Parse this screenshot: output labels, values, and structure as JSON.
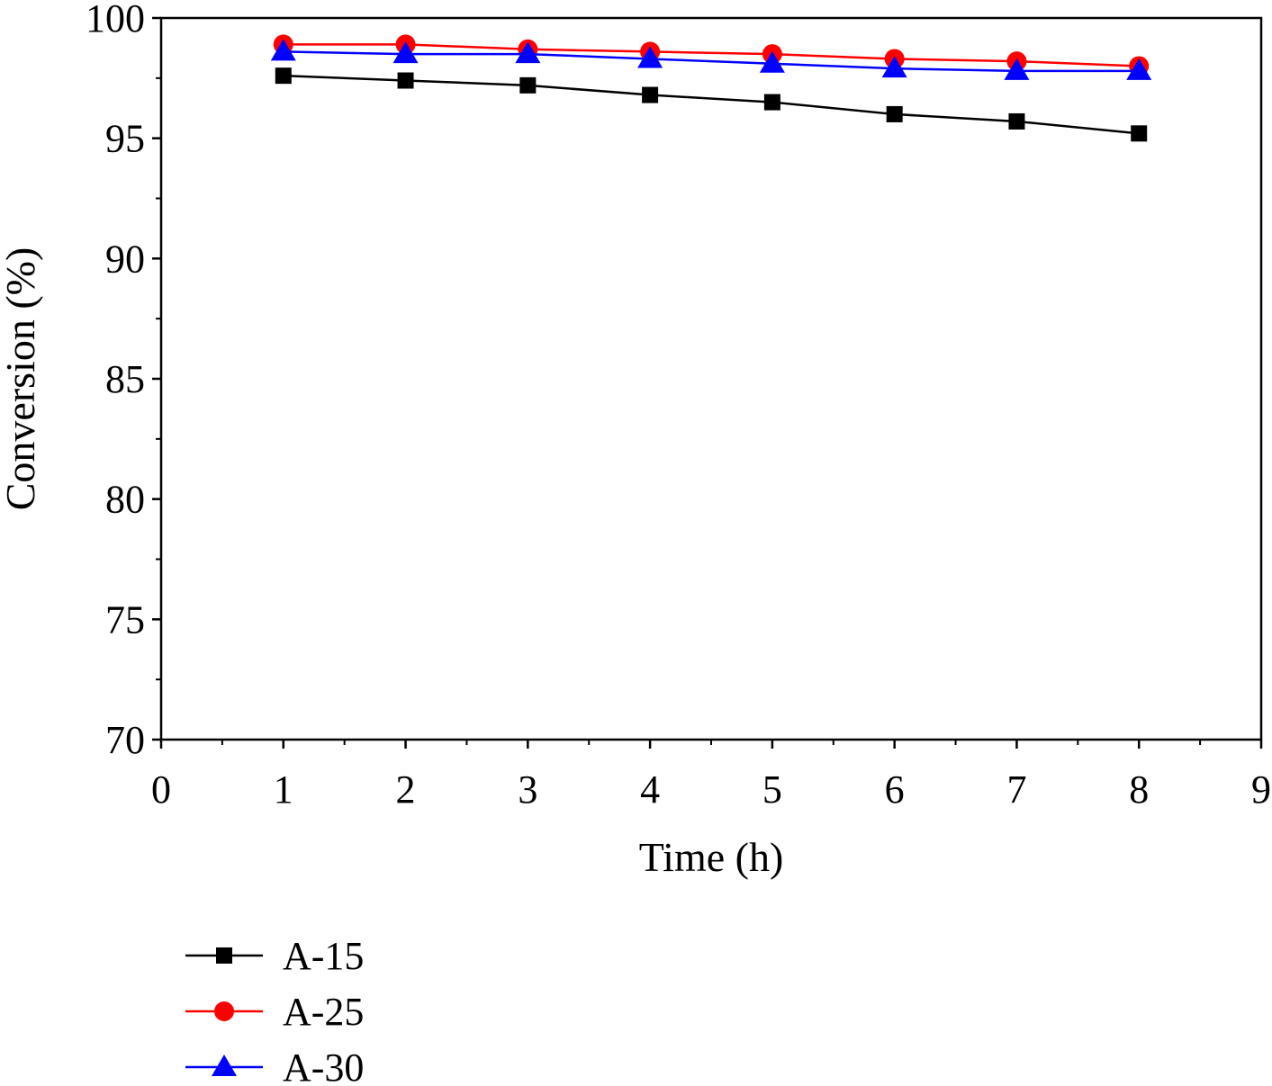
{
  "chart_data": {
    "type": "line",
    "title": "",
    "xlabel": "Time (h)",
    "ylabel": "Conversion (%)",
    "xlim": [
      0,
      9
    ],
    "ylim": [
      70,
      100
    ],
    "x_ticks": [
      0,
      1,
      2,
      3,
      4,
      5,
      6,
      7,
      8,
      9
    ],
    "y_ticks": [
      70,
      75,
      80,
      85,
      90,
      95,
      100
    ],
    "x_tick_labels": [
      "0",
      "1",
      "2",
      "3",
      "4",
      "5",
      "6",
      "7",
      "8",
      "9"
    ],
    "y_tick_labels": [
      "70",
      "75",
      "80",
      "85",
      "90",
      "95",
      "100"
    ],
    "grid": false,
    "legend_position": "bottom-left (below plot)",
    "x": [
      1,
      2,
      3,
      4,
      5,
      6,
      7,
      8
    ],
    "series": [
      {
        "name": "A-15",
        "marker": "square",
        "color": "#000000",
        "values": [
          97.6,
          97.4,
          97.2,
          96.8,
          96.5,
          96.0,
          95.7,
          95.2
        ]
      },
      {
        "name": "A-25",
        "marker": "circle",
        "color": "#ff0000",
        "values": [
          98.9,
          98.9,
          98.7,
          98.6,
          98.5,
          98.3,
          98.2,
          98.0
        ]
      },
      {
        "name": "A-30",
        "marker": "triangle",
        "color": "#0000ff",
        "values": [
          98.6,
          98.5,
          98.5,
          98.3,
          98.1,
          97.9,
          97.8,
          97.8
        ]
      }
    ]
  }
}
